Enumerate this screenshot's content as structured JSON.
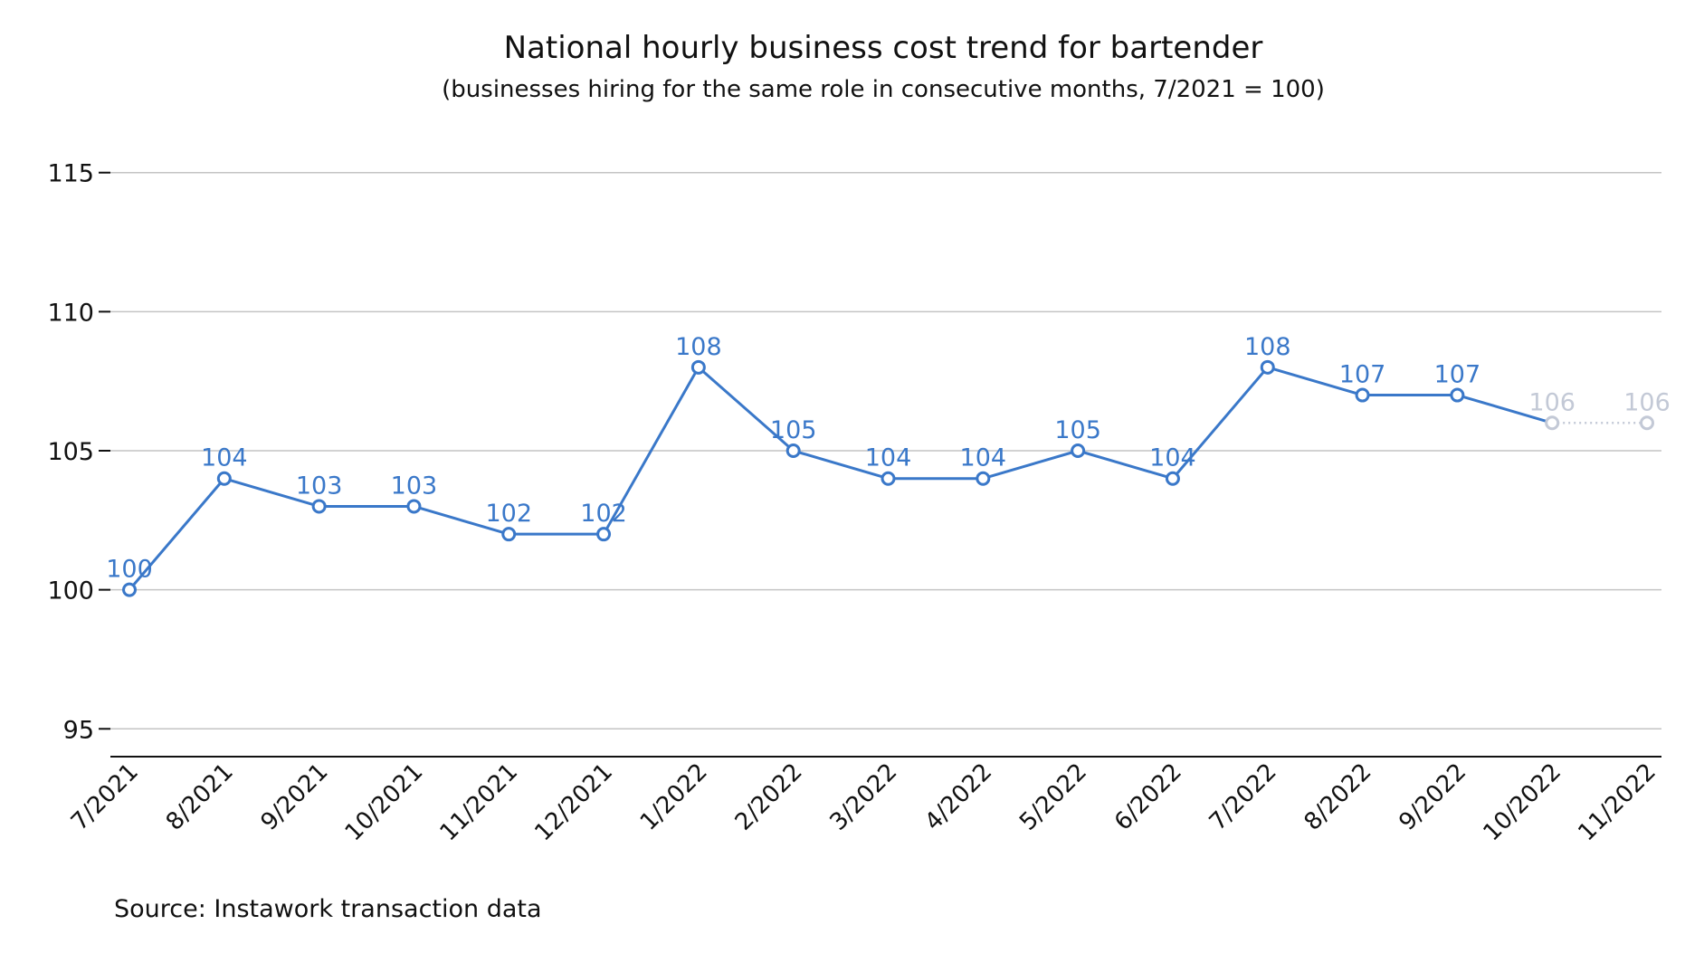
{
  "chart_data": {
    "type": "line",
    "title": "National hourly business cost trend for bartender",
    "subtitle": "(businesses hiring for the same role in consecutive months, 7/2021 = 100)",
    "source": "Source: Instawork transaction data",
    "xlabel": "",
    "ylabel": "",
    "categories": [
      "7/2021",
      "8/2021",
      "9/2021",
      "10/2021",
      "11/2021",
      "12/2021",
      "1/2022",
      "2/2022",
      "3/2022",
      "4/2022",
      "5/2022",
      "6/2022",
      "7/2022",
      "8/2022",
      "9/2022",
      "10/2022",
      "11/2022"
    ],
    "series": [
      {
        "values": [
          100,
          104,
          103,
          103,
          102,
          102,
          108,
          105,
          104,
          104,
          105,
          104,
          108,
          107,
          107,
          106,
          106
        ],
        "labels": [
          "100",
          "104",
          "103",
          "103",
          "102",
          "102",
          "108",
          "105",
          "104",
          "104",
          "105",
          "104",
          "108",
          "107",
          "107",
          "106",
          "106"
        ],
        "color": "#3a78c9",
        "muted_color": "#c3c9d6",
        "muted_from_index": 15
      }
    ],
    "ylim": [
      94,
      116
    ],
    "yticks": [
      95,
      100,
      105,
      110,
      115
    ],
    "ytick_labels": [
      "95",
      "100",
      "105",
      "110",
      "115"
    ],
    "grid": true,
    "legend": "none"
  }
}
